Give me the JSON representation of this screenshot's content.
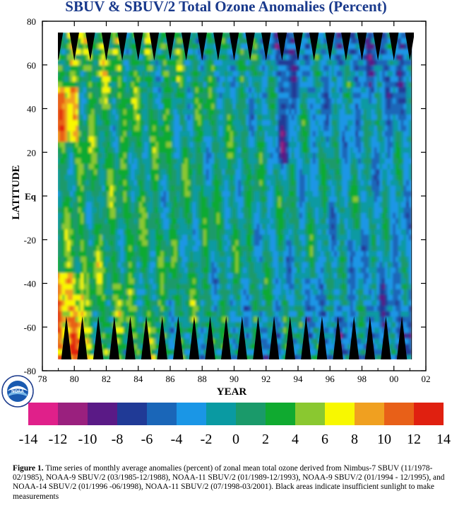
{
  "chart_data": {
    "type": "heatmap",
    "title": "SBUV & SBUV/2 Total Ozone Anomalies (Percent)",
    "xlabel": "YEAR",
    "ylabel": "LATITUDE",
    "x_ticks": [
      "78",
      "80",
      "82",
      "84",
      "86",
      "88",
      "90",
      "92",
      "94",
      "96",
      "98",
      "00",
      "02"
    ],
    "y_ticks": [
      "80",
      "60",
      "40",
      "20",
      "Eq",
      "-20",
      "-40",
      "-60",
      "-80"
    ],
    "x_range": [
      1978,
      2002
    ],
    "y_range": [
      -80,
      80
    ],
    "data_extent": {
      "x": [
        1978.9,
        2001.1
      ],
      "y": [
        -75,
        75
      ]
    },
    "colorbar": {
      "tick_labels": [
        "-14",
        "-12",
        "-10",
        "-8",
        "-6",
        "-4",
        "-2",
        "0",
        "2",
        "4",
        "6",
        "8",
        "10",
        "12",
        "14"
      ],
      "colors": [
        "#e0208a",
        "#9a207e",
        "#5a1a86",
        "#203a96",
        "#1a66b8",
        "#1a96e6",
        "#0a9aa2",
        "#1a9a6a",
        "#10aa30",
        "#8ac830",
        "#f8f800",
        "#f0a020",
        "#e86018",
        "#e02010"
      ],
      "insufficient_sunlight_color": "#000000"
    },
    "grid": false
  },
  "figure": {
    "caption_label": "Figure 1.",
    "caption_text": "Time series of monthly average anomalies (percent) of zonal mean total ozone derived from Nimbus-7 SBUV (11/1978-02/1985), NOAA-9 SBUV/2 (03/1985-12/1988), NOAA-11 SBUV/2 (01/1989-12/1993), NOAA-9 SBUV/2 (01/1994 - 12/1995), and NOAA-14 SBUV/2 (01/1996 -06/1998), NOAA-11 SBUV/2 (07/1998-03/2001).  Black areas indicate insufficient sunlight to make measurements",
    "logo_text": "NOAA"
  }
}
